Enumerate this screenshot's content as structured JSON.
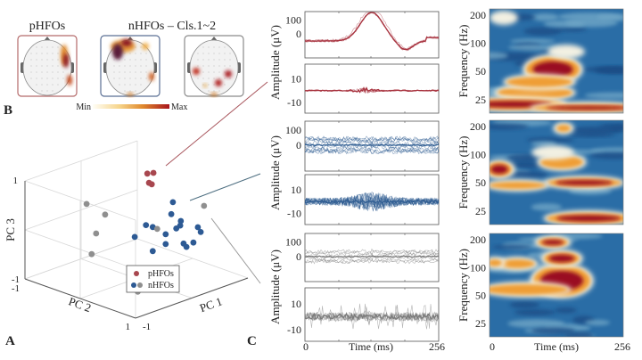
{
  "panel_labels": {
    "a": "A",
    "b": "B",
    "c": "C"
  },
  "topomaps": {
    "title_p": "pHFOs",
    "title_n": "nHFOs – Cls.1~2",
    "colorbar_min": "Min",
    "colorbar_max": "Max",
    "colors": {
      "p_frame": "#b56a6a",
      "n_frame": "#5a6f94",
      "n2_frame": "#8a8a8a"
    }
  },
  "waveforms": {
    "ylabel": "Amplitude (μV)",
    "raw_ticks": [
      "100",
      "0"
    ],
    "filtered_ticks": [
      "10",
      "-10"
    ],
    "xlabel": "Time (ms)",
    "x_ticks": [
      "0",
      "256"
    ],
    "colors": {
      "pHFOs": "#a8333f",
      "nHFOs_cls1": "#2f5d92",
      "nHFOs_cls2": "#7a7a7a"
    }
  },
  "spectrograms": {
    "ylabel": "Frequency (Hz)",
    "y_ticks": [
      "200",
      "100",
      "50",
      "25"
    ],
    "xlabel": "Time (ms)",
    "x_ticks": [
      "0",
      "256"
    ]
  },
  "chart_data": {
    "type": "scatter",
    "xlabel": "PC 1",
    "ylabel": "PC 2",
    "zlabel": "PC 3",
    "xlim": [
      -1,
      1
    ],
    "ylim": [
      -1,
      1
    ],
    "zlim": [
      -1,
      1
    ],
    "tick_labels": {
      "pc3_top": "1",
      "pc3_bottom": "-1",
      "pc2_start": "-1",
      "pc2_end": "1",
      "pc1_start": "-1"
    },
    "grid": true,
    "legend": {
      "placement": "bottom-center",
      "entries": [
        "pHFOs",
        "nHFOs"
      ]
    },
    "series": [
      {
        "name": "pHFOs",
        "color": "#a8474f",
        "points": [
          [
            0.39,
            -0.2,
            0.9
          ],
          [
            0.5,
            -0.2,
            0.87
          ],
          [
            0.42,
            -0.2,
            0.7
          ],
          [
            0.47,
            -0.2,
            0.65
          ]
        ]
      },
      {
        "name": "nHFOs",
        "color": "#2d5a94",
        "points": [
          [
            0.65,
            0,
            0.29
          ],
          [
            0.62,
            0,
            0.06
          ],
          [
            0.79,
            0,
            -0.15
          ],
          [
            0.17,
            0,
            0.02
          ],
          [
            0.29,
            0,
            -0.07
          ],
          [
            0.71,
            0,
            -0.27
          ],
          [
            0.78,
            0,
            -0.24
          ],
          [
            0.7,
            0.4,
            -0.08
          ],
          [
            0.75,
            0.4,
            -0.2
          ],
          [
            0.52,
            0,
            -0.31
          ],
          [
            -0.03,
            0,
            -0.14
          ],
          [
            0.52,
            0,
            -0.51
          ],
          [
            0.84,
            0,
            -0.63
          ],
          [
            0.89,
            0,
            -0.72
          ],
          [
            0.62,
            0.4,
            -0.36
          ],
          [
            0.29,
            0,
            -0.56
          ]
        ]
      },
      {
        "name": "nHFOs",
        "color": "#8f8f8f",
        "points": [
          [
            0.81,
            0.4,
            0.31
          ],
          [
            0.37,
            0,
            -0.14
          ],
          [
            -0.1,
            -0.8,
            0.24
          ],
          [
            0.23,
            -0.8,
            -0.11
          ],
          [
            0.07,
            -0.8,
            -0.43
          ],
          [
            -0.01,
            -0.8,
            -0.82
          ],
          [
            -0.37,
            0.4,
            -0.96
          ]
        ]
      }
    ]
  }
}
